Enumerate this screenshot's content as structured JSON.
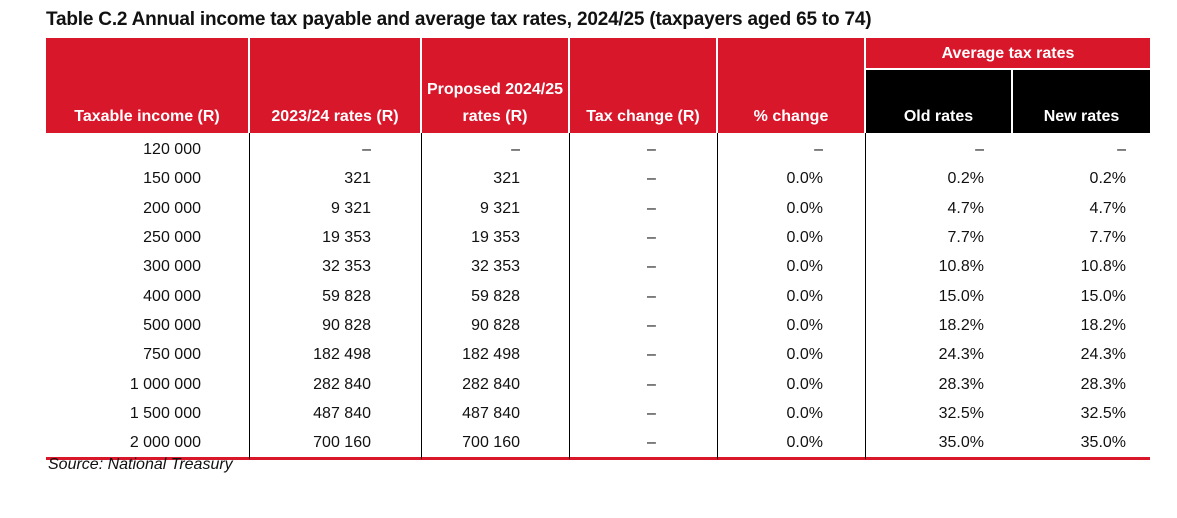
{
  "title": "Table C.2 Annual income tax payable and average tax rates, 2024/25 (taxpayers aged 65 to 74)",
  "headers": {
    "taxable_income": "Taxable income (R)",
    "rates_2023": "2023/24 rates (R)",
    "rates_2024": "Proposed 2024/25 rates (R)",
    "tax_change": "Tax change (R)",
    "pct_change": "% change",
    "average_group": "Average tax rates",
    "old_rates": "Old rates",
    "new_rates": "New rates"
  },
  "rows": [
    [
      "120 000",
      "–",
      "–",
      "–",
      "–",
      "–",
      "–"
    ],
    [
      "150 000",
      "321",
      "321",
      "–",
      "0.0%",
      "0.2%",
      "0.2%"
    ],
    [
      "200 000",
      "9 321",
      "9 321",
      "–",
      "0.0%",
      "4.7%",
      "4.7%"
    ],
    [
      "250 000",
      "19 353",
      "19 353",
      "–",
      "0.0%",
      "7.7%",
      "7.7%"
    ],
    [
      "300 000",
      "32 353",
      "32 353",
      "–",
      "0.0%",
      "10.8%",
      "10.8%"
    ],
    [
      "400 000",
      "59 828",
      "59 828",
      "–",
      "0.0%",
      "15.0%",
      "15.0%"
    ],
    [
      "500 000",
      "90 828",
      "90 828",
      "–",
      "0.0%",
      "18.2%",
      "18.2%"
    ],
    [
      "750 000",
      "182 498",
      "182 498",
      "–",
      "0.0%",
      "24.3%",
      "24.3%"
    ],
    [
      "1 000 000",
      "282 840",
      "282 840",
      "–",
      "0.0%",
      "28.3%",
      "28.3%"
    ],
    [
      "1 500 000",
      "487 840",
      "487 840",
      "–",
      "0.0%",
      "32.5%",
      "32.5%"
    ],
    [
      "2 000 000",
      "700 160",
      "700 160",
      "–",
      "0.0%",
      "35.0%",
      "35.0%"
    ]
  ],
  "source": "Source: National Treasury",
  "colors": {
    "header_red": "#d9172b",
    "header_black": "#000000"
  }
}
